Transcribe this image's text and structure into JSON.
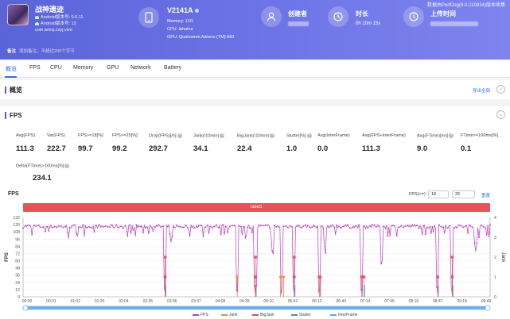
{
  "header": {
    "powered_by": "数据由PerfDog(6.0.210834)版本收集",
    "game": {
      "name": "战神遗迹",
      "android_version": "Android版本号: 0.6.11",
      "android_code": "Android版本号: 13",
      "package": "com.wmcj.zsyj.vivo"
    },
    "device": {
      "name": "V2141A",
      "memory": "Memory: 11G",
      "cpu": "CPU: lahaina",
      "gpu": "GPU: Qualcomm Adreno (TM) 660"
    },
    "creator_label": "创建者",
    "duration_label": "时长",
    "duration_value": "0h 10m 15s",
    "upload_label": "上传时间",
    "remark_label": "备注",
    "remark_placeholder": "添加备注，不超过200个字节",
    "colors": {
      "gradient_start": "#5a63d8",
      "gradient_end": "#7d84ee"
    }
  },
  "tabs": [
    "概览",
    "FPS",
    "CPU",
    "Memory",
    "GPU",
    "Network",
    "Battery"
  ],
  "active_tab": "概览",
  "overview": {
    "title": "概览",
    "export_label": "导出全部"
  },
  "fps_section": {
    "title": "FPS",
    "metrics": [
      {
        "label": "Avg(FPS)",
        "value": "111.3",
        "help": false
      },
      {
        "label": "Var(FPS)",
        "value": "222.7",
        "help": false
      },
      {
        "label": "FPS>=18[%]",
        "value": "99.7",
        "help": false
      },
      {
        "label": "FPS>=25[%]",
        "value": "99.2",
        "help": false
      },
      {
        "label": "Drop(FPS)[/h]",
        "value": "292.7",
        "help": true
      },
      {
        "label": "Jank(/10min)",
        "value": "34.1",
        "help": true
      },
      {
        "label": "BigJank(/10min)",
        "value": "22.4",
        "help": true
      },
      {
        "label": "Stutter[%]",
        "value": "1.0",
        "help": true
      },
      {
        "label": "Avg(InterFrame)",
        "value": "0.0",
        "help": false
      },
      {
        "label": "Avg(FPS+InterFrame)",
        "value": "111.3",
        "help": false
      },
      {
        "label": "Avg(FTime)[ms]",
        "value": "9.0",
        "help": true
      },
      {
        "label": "FTime>=100ms[%]",
        "value": "0.1",
        "help": false
      }
    ],
    "metric2": {
      "label": "Delta(FTime)>100ms[/h]",
      "value": "234.1"
    }
  },
  "chart_header": {
    "title": "FPS",
    "filter_label": "FPS(>=)",
    "filter_min": "18",
    "filter_max": "25",
    "reset_label": "重置",
    "label_bar": "label1"
  },
  "chart_data": {
    "type": "line",
    "ylabel_left": "FPS",
    "ylabel_right": "Jank",
    "y_ticks_left": [
      "132",
      "120",
      "108",
      "96",
      "84",
      "72",
      "60",
      "48",
      "36",
      "24",
      "12",
      "0"
    ],
    "y_ticks_right": [
      "4",
      "3",
      "2",
      "1",
      "0"
    ],
    "ylim_left": [
      0,
      132
    ],
    "ylim_right": [
      0,
      4
    ],
    "x_labels": [
      "00:00",
      "00:31",
      "01:02",
      "01:33",
      "02:04",
      "02:35",
      "03:06",
      "03:37",
      "04:08",
      "04:39",
      "05:10",
      "05:41",
      "06:12",
      "06:43",
      "07:14",
      "07:45",
      "08:16",
      "08:47",
      "09:18",
      "09:49"
    ],
    "duration_seconds": 615,
    "fps_baseline": 116,
    "fps_drops": [
      {
        "t": 187,
        "min": 3
      },
      {
        "t": 195,
        "min": 88
      },
      {
        "t": 282,
        "min": 2
      },
      {
        "t": 306,
        "min": 4
      },
      {
        "t": 329,
        "min": 66
      },
      {
        "t": 340,
        "min": 3
      },
      {
        "t": 357,
        "min": 3
      },
      {
        "t": 390,
        "min": 3
      },
      {
        "t": 398,
        "min": 70
      },
      {
        "t": 446,
        "min": 3
      },
      {
        "t": 472,
        "min": 50
      },
      {
        "t": 546,
        "min": 3
      },
      {
        "t": 565,
        "min": 3
      },
      {
        "t": 596,
        "min": 75
      }
    ],
    "bigjank_markers": [
      {
        "t": 187,
        "v": 2
      },
      {
        "t": 187,
        "v": 1
      },
      {
        "t": 306,
        "v": 1
      },
      {
        "t": 306,
        "v": 2
      },
      {
        "t": 357,
        "v": 1
      },
      {
        "t": 357,
        "v": 2
      },
      {
        "t": 390,
        "v": 1
      },
      {
        "t": 446,
        "v": 1
      },
      {
        "t": 449,
        "v": 1
      },
      {
        "t": 546,
        "v": 1
      },
      {
        "t": 565,
        "v": 1
      },
      {
        "t": 565,
        "v": 2
      }
    ],
    "jank_markers": [
      {
        "t": 282,
        "v": 1
      },
      {
        "t": 339,
        "v": 1
      },
      {
        "t": 343,
        "v": 1
      },
      {
        "t": 392,
        "v": 1
      }
    ],
    "series": [
      {
        "name": "FPS",
        "color": "#b93dbd"
      },
      {
        "name": "Jank",
        "color": "#f08a3c"
      },
      {
        "name": "BigJank",
        "color": "#e8484f"
      },
      {
        "name": "Stutter",
        "color": "#6b7fb0"
      },
      {
        "name": "InterFrame",
        "color": "#5aa2e8"
      }
    ]
  }
}
